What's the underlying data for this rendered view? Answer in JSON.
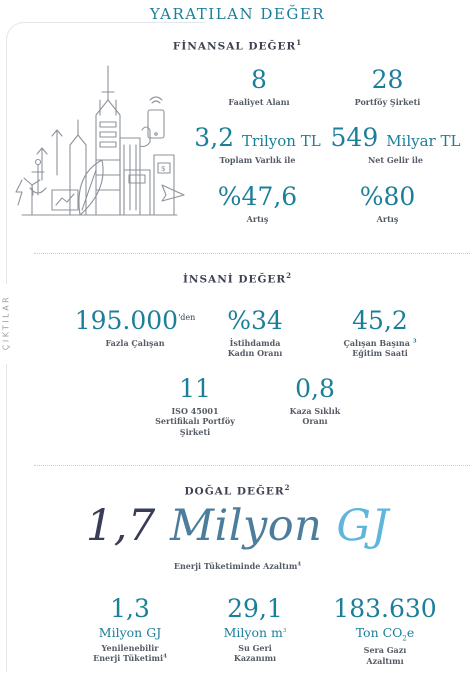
{
  "side_label": "ÇIKTILAR",
  "title": "YARATILAN DEĞER",
  "finansal": {
    "title": "FİNANSAL DEĞER",
    "note": "1",
    "stats": [
      {
        "value": "8",
        "unit": "",
        "label": "Faaliyet Alanı"
      },
      {
        "value": "28",
        "unit": "",
        "label": "Portföy Şirketi"
      },
      {
        "value": "3,2",
        "unit": "Trilyon TL",
        "label": "Toplam Varlık ile"
      },
      {
        "value": "549",
        "unit": "Milyar TL",
        "label": "Net Gelir ile"
      },
      {
        "value": "%47,6",
        "unit": "",
        "label": "Artış"
      },
      {
        "value": "%80",
        "unit": "",
        "label": "Artış"
      }
    ]
  },
  "insani": {
    "title": "İNSANİ DEĞER",
    "note": "2",
    "stats": [
      {
        "value": "195.000",
        "suffix": "'den",
        "label_lines": [
          "Fazla Çalışan"
        ]
      },
      {
        "value": "%34",
        "label_lines": [
          "İstihdamda",
          "Kadın Oranı"
        ]
      },
      {
        "value": "45,2",
        "label_lines": [
          "Çalışan Başına",
          "Eğitim Saati"
        ],
        "note": "3"
      },
      {
        "value": "11",
        "label_lines": [
          "ISO 45001",
          "Sertifikalı Portföy",
          "Şirketi"
        ]
      },
      {
        "value": "0,8",
        "label_lines": [
          "Kaza Sıklık",
          "Oranı"
        ]
      }
    ]
  },
  "dogal": {
    "title": "DOĞAL DEĞER",
    "note": "2",
    "headline": {
      "p1": "1,7",
      "p2": "Milyon",
      "p3": "GJ",
      "label": "Enerji Tüketiminde Azaltım",
      "note": "4"
    },
    "stats": [
      {
        "value": "1,3",
        "unit": "Milyon GJ",
        "label_lines": [
          "Yenilenebilir",
          "Enerji Tüketimi"
        ],
        "note": "4"
      },
      {
        "value": "29,1",
        "unit": "Milyon m",
        "unit_sup": "3",
        "label_lines": [
          "Su Geri",
          "Kazanımı"
        ]
      },
      {
        "value": "183.630",
        "unit": "Ton CO",
        "unit_sub": "2",
        "unit_tail": "e",
        "label_lines": [
          "Sera Gazı",
          "Azaltımı"
        ]
      }
    ]
  },
  "colors": {
    "teal": "#1c7f9a",
    "dark": "#3e4152",
    "light_blue": "#5fb6dc"
  },
  "illustration": "city-skyline-icon"
}
